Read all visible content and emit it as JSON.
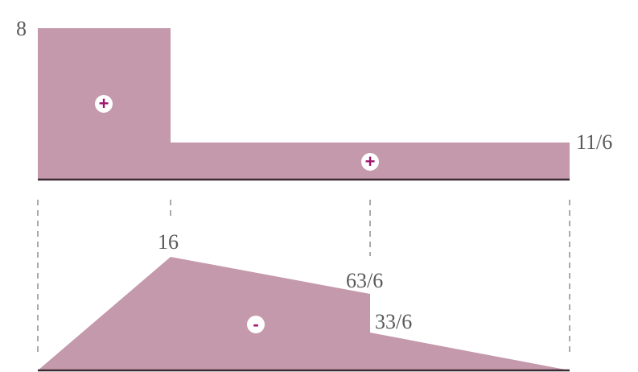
{
  "colors": {
    "fill": "#c499ab",
    "baseline": "#3b2a33",
    "sign_circle": "#ffffff",
    "sign_text": "#a0166e",
    "text": "#5a5a5a"
  },
  "shear_diagram": {
    "value_left": "8",
    "value_right": "11/6",
    "sign_left": "+",
    "sign_right": "+"
  },
  "moment_diagram": {
    "value_peak": "16",
    "value_jump_top": "63/6",
    "value_jump_bottom": "33/6",
    "sign": "-"
  }
}
